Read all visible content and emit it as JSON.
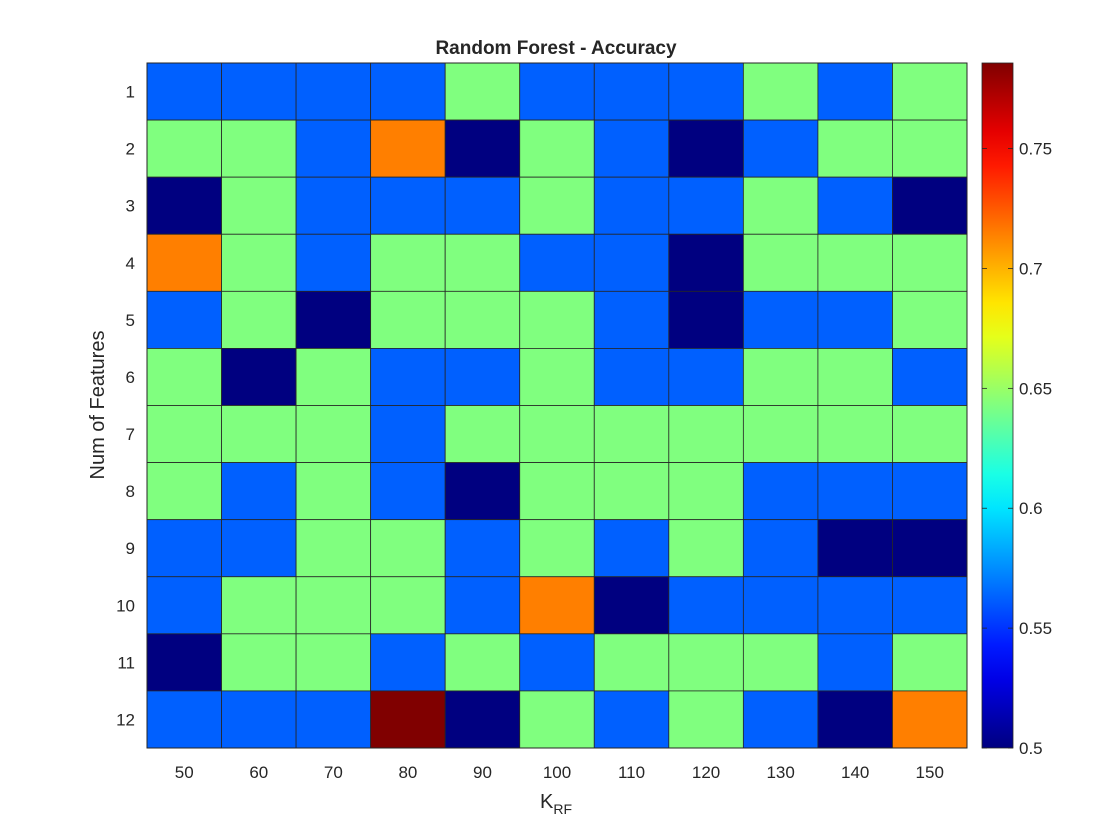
{
  "chart_data": {
    "type": "heatmap",
    "title": "Random Forest - Accuracy",
    "xlabel": "K",
    "xlabel_subscript": "RF",
    "ylabel": "Num of Features",
    "x_categories": [
      "50",
      "60",
      "70",
      "80",
      "90",
      "100",
      "110",
      "120",
      "130",
      "140",
      "150"
    ],
    "y_categories": [
      "1",
      "2",
      "3",
      "4",
      "5",
      "6",
      "7",
      "8",
      "9",
      "10",
      "11",
      "12"
    ],
    "values": [
      [
        0.5625,
        0.5625,
        0.5625,
        0.5625,
        0.6429,
        0.5625,
        0.5625,
        0.5625,
        0.6429,
        0.5625,
        0.6429
      ],
      [
        0.6429,
        0.6429,
        0.5625,
        0.7143,
        0.5,
        0.6429,
        0.5625,
        0.5,
        0.5625,
        0.6429,
        0.6429
      ],
      [
        0.5,
        0.6429,
        0.5625,
        0.5625,
        0.5625,
        0.6429,
        0.5625,
        0.5625,
        0.6429,
        0.5625,
        0.5
      ],
      [
        0.7143,
        0.6429,
        0.5625,
        0.6429,
        0.6429,
        0.5625,
        0.5625,
        0.5,
        0.6429,
        0.6429,
        0.6429
      ],
      [
        0.5625,
        0.6429,
        0.5,
        0.6429,
        0.6429,
        0.6429,
        0.5625,
        0.5,
        0.5625,
        0.5625,
        0.6429
      ],
      [
        0.6429,
        0.5,
        0.6429,
        0.5625,
        0.5625,
        0.6429,
        0.5625,
        0.5625,
        0.6429,
        0.6429,
        0.5625
      ],
      [
        0.6429,
        0.6429,
        0.6429,
        0.5625,
        0.6429,
        0.6429,
        0.6429,
        0.6429,
        0.6429,
        0.6429,
        0.6429
      ],
      [
        0.6429,
        0.5625,
        0.6429,
        0.5625,
        0.5,
        0.6429,
        0.6429,
        0.6429,
        0.5625,
        0.5625,
        0.5625
      ],
      [
        0.5625,
        0.5625,
        0.6429,
        0.6429,
        0.5625,
        0.6429,
        0.5625,
        0.6429,
        0.5625,
        0.5,
        0.5
      ],
      [
        0.5625,
        0.6429,
        0.6429,
        0.6429,
        0.5625,
        0.7143,
        0.5,
        0.5625,
        0.5625,
        0.5625,
        0.5625
      ],
      [
        0.5,
        0.6429,
        0.6429,
        0.5625,
        0.6429,
        0.5625,
        0.6429,
        0.6429,
        0.6429,
        0.5625,
        0.6429
      ],
      [
        0.5625,
        0.5625,
        0.5625,
        0.7857,
        0.5,
        0.6429,
        0.5625,
        0.6429,
        0.5625,
        0.5,
        0.7143
      ]
    ],
    "colorscale": "jet",
    "color_range": [
      0.5,
      0.7857
    ],
    "colorbar_ticks": [
      "0.5",
      "0.55",
      "0.6",
      "0.65",
      "0.7",
      "0.75"
    ],
    "colorbar_position": "right"
  }
}
